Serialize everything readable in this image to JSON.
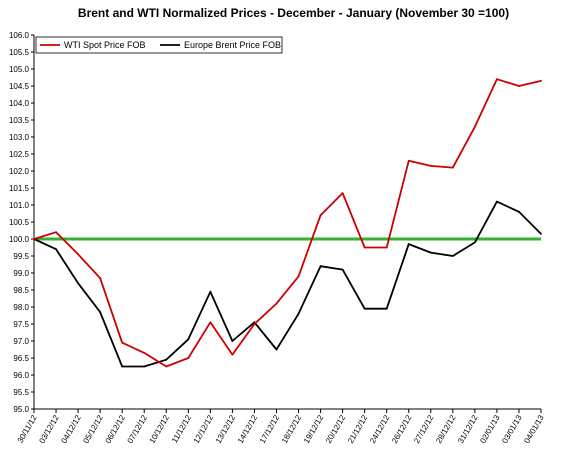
{
  "chart_data": {
    "type": "line",
    "title": "Brent and WTI Normalized Prices  -  December - January (November 30 =100)",
    "xlabel": "",
    "ylabel": "",
    "ylim": [
      95.0,
      106.0
    ],
    "ytick_step": 0.5,
    "grid": false,
    "legend_position": "top-left",
    "reference_line": {
      "value": 100.0,
      "color": "#33b233"
    },
    "categories": [
      "30/11/12",
      "03/12/12",
      "04/12/12",
      "05/12/12",
      "06/12/12",
      "07/12/12",
      "10/12/12",
      "11/12/12",
      "12/12/12",
      "13/12/12",
      "14/12/12",
      "17/12/12",
      "18/12/12",
      "19/12/12",
      "20/12/12",
      "21/12/12",
      "24/12/12",
      "26/12/12",
      "27/12/12",
      "28/12/12",
      "31/12/12",
      "02/01/13",
      "03/01/13",
      "04/01/13"
    ],
    "series": [
      {
        "name": "WTI Spot Price FOB",
        "color": "#cc0000",
        "values": [
          100.0,
          100.2,
          99.55,
          98.85,
          96.95,
          96.65,
          96.25,
          96.5,
          97.55,
          96.6,
          97.5,
          98.1,
          98.9,
          100.7,
          101.35,
          99.75,
          99.75,
          102.3,
          102.15,
          102.1,
          103.3,
          104.7,
          104.5,
          104.65
        ]
      },
      {
        "name": "Europe Brent Price FOB",
        "color": "#000000",
        "values": [
          100.0,
          99.7,
          98.7,
          97.85,
          96.25,
          96.25,
          96.45,
          97.05,
          98.45,
          97.0,
          97.55,
          96.75,
          97.8,
          99.2,
          99.1,
          97.95,
          97.95,
          99.85,
          99.6,
          99.5,
          99.9,
          101.1,
          100.8,
          100.15
        ]
      }
    ]
  }
}
